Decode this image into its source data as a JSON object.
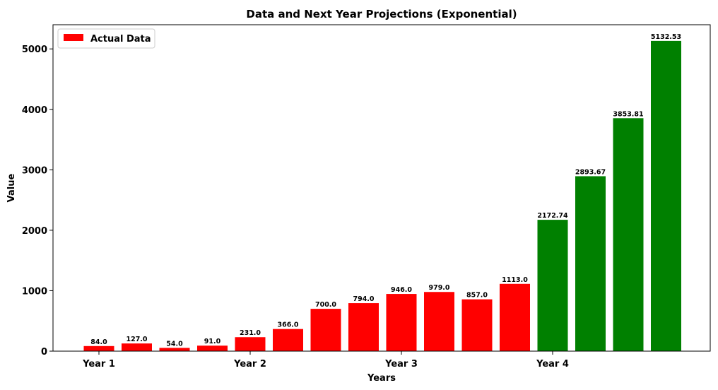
{
  "chart_data": {
    "type": "bar",
    "title": "Data and Next Year Projections (Exponential)",
    "xlabel": "Years",
    "ylabel": "Value",
    "ylim": [
      0,
      5400
    ],
    "yticks": [
      0,
      1000,
      2000,
      3000,
      4000,
      5000
    ],
    "x_tick_labels": [
      {
        "label": "Year 1",
        "index": 0
      },
      {
        "label": "Year 2",
        "index": 4
      },
      {
        "label": "Year 3",
        "index": 8
      },
      {
        "label": "Year 4",
        "index": 12
      }
    ],
    "legend": {
      "placement": "top-left",
      "entries": [
        {
          "name": "Actual Data",
          "color": "#ff0000"
        }
      ]
    },
    "series": [
      {
        "name": "Actual Data",
        "color": "#ff0000",
        "start_index": 0,
        "values": [
          84.0,
          127.0,
          54.0,
          91.0,
          231.0,
          366.0,
          700.0,
          794.0,
          946.0,
          979.0,
          857.0,
          1113.0
        ],
        "labels": [
          "84.0",
          "127.0",
          "54.0",
          "91.0",
          "231.0",
          "366.0",
          "700.0",
          "794.0",
          "946.0",
          "979.0",
          "857.0",
          "1113.0"
        ]
      },
      {
        "name": "",
        "color": "#008000",
        "start_index": 12,
        "values": [
          2172.74,
          2893.67,
          3853.81,
          5132.53
        ],
        "labels": [
          "2172.74",
          "2893.67",
          "3853.81",
          "5132.53"
        ]
      }
    ],
    "grid": false
  }
}
